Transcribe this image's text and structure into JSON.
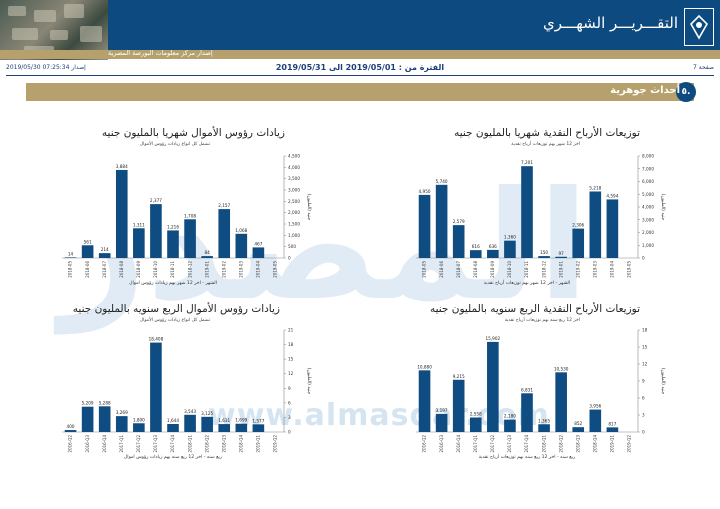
{
  "header": {
    "title": "التقـــريـــر الشهـــري",
    "subtitle": "إصدار مركز معلومات البورصة المصرية"
  },
  "info": {
    "issue_label": "إصدار",
    "issue_datetime": "2019/05/30 07:25:34",
    "period": "الفترة من : 2019/05/01 الى 2019/05/31",
    "page": "صفحة 7"
  },
  "section": {
    "number": "٥.",
    "title": "أحداث جوهرية"
  },
  "watermark": {
    "text": "المصدر",
    "url": "www.almasdar.com"
  },
  "colors": {
    "navy": "#0d4a80",
    "gold": "#b6a06c",
    "bar": "#0f4c81"
  },
  "chart_data": [
    {
      "type": "bar",
      "title": "زيادات رؤوس الأموال شهريا بالمليون جنيه",
      "subtitle": "تشمل كل انواع زيادات رؤوس الأموال",
      "xlabel": "الشهر - اخر 12 شهر بهم زيادات رؤوس اموال",
      "ylabel": "جنيه (المليون)",
      "categories": [
        "2018-05",
        "2018-06",
        "2018-07",
        "2018-08",
        "2018-09",
        "2018-10",
        "2018-11",
        "2018-12",
        "2019-01",
        "2019-02",
        "2019-03",
        "2019-04",
        "2019-05"
      ],
      "values": [
        14,
        561,
        214,
        3884,
        1311,
        2377,
        1216,
        1708,
        84,
        2157,
        1068,
        467,
        null
      ],
      "labels": [
        "14",
        "561",
        "214",
        "3,884",
        "1,311",
        "2,377",
        "1,216",
        "1,708",
        "84",
        "2,157",
        "1,068",
        "467",
        ""
      ],
      "ylim": [
        0,
        4500
      ],
      "yticks": [
        "0",
        "500",
        "1,000",
        "1,500",
        "2,000",
        "2,500",
        "3,000",
        "3,500",
        "4,000",
        "4,500"
      ]
    },
    {
      "type": "bar",
      "title": "توزيعات الأرباح النقدية شهريا بالمليون جنيه",
      "subtitle": "اخر 12 شهر بهم توزيعات أرباح نقدية",
      "xlabel": "الشهر - اخر 12 شهر بهم توزيعات أرباح نقدية",
      "ylabel": "جنيه (المليون)",
      "categories": [
        "2018-05",
        "2018-06",
        "2018-07",
        "2018-08",
        "2018-09",
        "2018-10",
        "2018-11",
        "2018-12",
        "2019-01",
        "2019-02",
        "2019-03",
        "2019-04",
        "2019-05"
      ],
      "values": [
        4950,
        5740,
        2579,
        616,
        636,
        1360,
        7201,
        150,
        97,
        2306,
        5218,
        4594,
        null
      ],
      "labels": [
        "4,950",
        "5,740",
        "2,579",
        "616",
        "636",
        "1,360",
        "7,201",
        "150",
        "97",
        "2,306",
        "5,218",
        "4,594",
        ""
      ],
      "ylim": [
        0,
        8000
      ],
      "yticks": [
        "0",
        "1,000",
        "2,000",
        "3,000",
        "4,000",
        "5,000",
        "6,000",
        "7,000",
        "8,000"
      ]
    },
    {
      "type": "bar",
      "title": "زيادات رؤوس الأموال الربع سنويه بالمليون جنيه",
      "subtitle": "تشمل كل انواع زيادات رؤوس الأموال",
      "xlabel": "ربع سنه - اخر 12 ربع سنه بهم زيادات رؤوس اموال",
      "ylabel": "جنيه (المليون)",
      "categories": [
        "2016-Q2",
        "2016-Q3",
        "2016-Q4",
        "2017-Q1",
        "2017-Q2",
        "2017-Q3",
        "2017-Q4",
        "2018-Q1",
        "2018-Q2",
        "2018-Q3",
        "2018-Q4",
        "2019-Q1",
        "2019-Q2"
      ],
      "values": [
        400,
        5209,
        5288,
        3269,
        1800,
        18408,
        1644,
        3543,
        3125,
        1631,
        1699,
        1577,
        null
      ],
      "labels": [
        "400",
        "5,209",
        "5,288",
        "3,269",
        "1,800",
        "18,408",
        "1,644",
        "3,543",
        "3,125",
        "1,631",
        "1,699",
        "1,577",
        ""
      ],
      "ylim": [
        0,
        21000
      ],
      "yticks": [
        "0",
        "3",
        "6",
        "9",
        "12",
        "15",
        "18",
        "21"
      ]
    },
    {
      "type": "bar",
      "title": "توزيعات الأرباح النقدية الربع سنويه بالمليون جنيه",
      "subtitle": "اخر 12 ربع سنه بهم توزيعات أرباح نقدية",
      "xlabel": "ربع سنه - اخر 12 ربع سنه بهم توزيعات أرباح نقدية",
      "ylabel": "جنيه (المليون)",
      "categories": [
        "2016-Q2",
        "2016-Q3",
        "2016-Q4",
        "2017-Q1",
        "2017-Q2",
        "2017-Q3",
        "2017-Q4",
        "2018-Q1",
        "2018-Q2",
        "2018-Q3",
        "2018-Q4",
        "2019-Q1",
        "2019-Q2"
      ],
      "values": [
        10880,
        3197,
        9215,
        2558,
        15902,
        2180,
        6831,
        1365,
        10530,
        852,
        3956,
        817,
        null
      ],
      "labels": [
        "10,880",
        "3,197",
        "9,215",
        "2,558",
        "15,902",
        "2,180",
        "6,831",
        "1,365",
        "10,530",
        "852",
        "3,956",
        "817",
        ""
      ],
      "ylim": [
        0,
        18000
      ],
      "yticks": [
        "0",
        "3",
        "6",
        "9",
        "12",
        "15",
        "18"
      ]
    }
  ]
}
